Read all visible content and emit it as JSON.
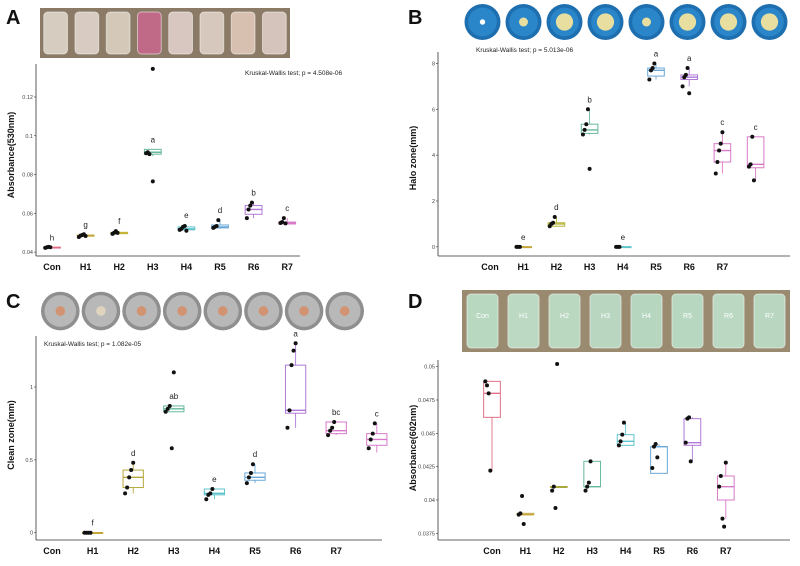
{
  "panels": [
    {
      "letter": "A",
      "annotation": "Kruskal-Wallis test; p = 4.508e-06",
      "ylabel": "Absorbance(530nm)",
      "strip": {
        "kind": "tubes",
        "fills": [
          "#d6ccc0",
          "#d8cbc2",
          "#d4c8b8",
          "#c06a88",
          "#d8c6c0",
          "#d6c8bc",
          "#d8c0b0",
          "#d4c4bc"
        ],
        "labels": []
      }
    },
    {
      "letter": "B",
      "annotation": "Kruskal-Wallis test; p = 5.013e-06",
      "ylabel": "Halo zone(mm)",
      "strip": {
        "kind": "blue-plates"
      }
    },
    {
      "letter": "C",
      "annotation": "Kruskal-Wallis test; p = 1.082e-05",
      "ylabel": "Clean zone(mm)",
      "strip": {
        "kind": "gray-plates"
      }
    },
    {
      "letter": "D",
      "annotation": "",
      "ylabel": "Absorbance(602nm)",
      "strip": {
        "kind": "tubes",
        "fills": [
          "#b9d8c0",
          "#bcd9c3",
          "#bad7bf",
          "#b8d6c0",
          "#b6d6bf",
          "#b8d7c1",
          "#bad8c2",
          "#b9d7c0"
        ],
        "labels": [
          "Con",
          "H1",
          "H2",
          "H3",
          "H4",
          "R5",
          "R6",
          "R7"
        ]
      }
    }
  ],
  "chart_data": [
    {
      "type": "box",
      "categories": [
        "Con",
        "H1",
        "H2",
        "H3",
        "H4",
        "R5",
        "R6",
        "R7"
      ],
      "ylabel": "Absorbance(530nm)",
      "ylim": [
        0.038,
        0.137
      ],
      "yticks": [
        0.04,
        0.06,
        0.08,
        0.1,
        0.12
      ],
      "colors": [
        "#e0708a",
        "#c4a63a",
        "#c4b43a",
        "#66b89a",
        "#5ec4cc",
        "#6aa8d8",
        "#b07ad8",
        "#d87ac8"
      ],
      "letters": [
        "h",
        "g",
        "f",
        "a",
        "e",
        "d",
        "b",
        "c"
      ],
      "boxes": [
        {
          "q1": 0.0425,
          "med": 0.0425,
          "q3": 0.0425,
          "lo": 0.0425,
          "hi": 0.0425,
          "pts": [
            0.0422,
            0.0425,
            0.0427,
            0.0425
          ]
        },
        {
          "q1": 0.0482,
          "med": 0.0485,
          "q3": 0.0488,
          "lo": 0.0478,
          "hi": 0.0492,
          "pts": [
            0.0478,
            0.0485,
            0.0488,
            0.0492,
            0.0483
          ]
        },
        {
          "q1": 0.0495,
          "med": 0.0498,
          "q3": 0.0502,
          "lo": 0.0492,
          "hi": 0.0508,
          "pts": [
            0.0494,
            0.05,
            0.0508,
            0.0499
          ]
        },
        {
          "q1": 0.0905,
          "med": 0.0915,
          "q3": 0.093,
          "lo": 0.0895,
          "hi": 0.093,
          "pts": [
            0.091,
            0.0915,
            0.0905
          ]
        },
        {
          "q1": 0.0515,
          "med": 0.052,
          "q3": 0.053,
          "lo": 0.051,
          "hi": 0.054,
          "pts": [
            0.0515,
            0.052,
            0.053,
            0.0535,
            0.051
          ]
        },
        {
          "q1": 0.0525,
          "med": 0.053,
          "q3": 0.054,
          "lo": 0.052,
          "hi": 0.0565,
          "pts": [
            0.0525,
            0.053,
            0.0535,
            0.0565
          ]
        },
        {
          "q1": 0.0595,
          "med": 0.062,
          "q3": 0.064,
          "lo": 0.0575,
          "hi": 0.0655,
          "pts": [
            0.0575,
            0.062,
            0.064,
            0.0655
          ]
        },
        {
          "q1": 0.0545,
          "med": 0.055,
          "q3": 0.0555,
          "lo": 0.0545,
          "hi": 0.0575,
          "pts": [
            0.055,
            0.0555,
            0.0575,
            0.0548
          ]
        }
      ],
      "outliers": [
        {
          "cat": "H3",
          "y": 0.1345
        },
        {
          "cat": "H3",
          "y": 0.0765
        }
      ]
    },
    {
      "type": "box",
      "categories": [
        "Con",
        "H1",
        "H2",
        "H3",
        "H4",
        "R5",
        "R6",
        "R7"
      ],
      "ylabel": "Halo zone(mm)",
      "ylim": [
        -0.4,
        8.5
      ],
      "yticks": [
        0,
        2,
        4,
        6,
        8
      ],
      "colors": [
        "#e0708a",
        "#c4a63a",
        "#b4b43a",
        "#66b89a",
        "#5ec4cc",
        "#6aa8d8",
        "#b07ad8",
        "#d87ac8"
      ],
      "letters": [
        "e",
        "d",
        "b",
        "e",
        "a",
        "a",
        "c",
        "c"
      ],
      "boxes": [
        null,
        {
          "q1": 0.0,
          "med": 0.0,
          "q3": 0.0,
          "lo": 0.0,
          "hi": 0.0,
          "pts": [
            0.0,
            0.0,
            0.0
          ]
        },
        {
          "q1": 0.9,
          "med": 1.0,
          "q3": 1.05,
          "lo": 0.9,
          "hi": 1.3,
          "pts": [
            0.9,
            1.0,
            1.05,
            1.3
          ]
        },
        {
          "q1": 4.95,
          "med": 5.1,
          "q3": 5.35,
          "lo": 4.9,
          "hi": 6.0,
          "pts": [
            4.9,
            5.1,
            5.35,
            6.0,
            3.4
          ]
        },
        {
          "q1": 0.0,
          "med": 0.0,
          "q3": 0.0,
          "lo": 0.0,
          "hi": 0.0,
          "pts": [
            0.0,
            0.0,
            0.0
          ]
        },
        {
          "q1": 7.45,
          "med": 7.7,
          "q3": 7.8,
          "lo": 7.3,
          "hi": 8.0,
          "pts": [
            7.3,
            7.7,
            7.8,
            8.0
          ]
        },
        {
          "q1": 7.3,
          "med": 7.4,
          "q3": 7.5,
          "lo": 7.0,
          "hi": 7.8,
          "pts": [
            7.0,
            7.4,
            7.5,
            7.8,
            6.7
          ]
        },
        {
          "q1": 3.7,
          "med": 4.2,
          "q3": 4.5,
          "lo": 3.2,
          "hi": 5.0,
          "pts": [
            3.2,
            3.7,
            4.2,
            4.5,
            5.0
          ]
        }
      ],
      "extra_box": {
        "q1": 3.45,
        "med": 3.6,
        "q3": 4.8,
        "lo": 2.9,
        "hi": 4.8,
        "pts": [
          3.5,
          3.6,
          4.8,
          2.9
        ]
      },
      "outliers": []
    },
    {
      "type": "box",
      "categories": [
        "Con",
        "H1",
        "H2",
        "H3",
        "H4",
        "R5",
        "R6",
        "R7"
      ],
      "ylabel": "Clean zone(mm)",
      "ylim": [
        -0.05,
        1.35
      ],
      "yticks": [
        0.0,
        0.5,
        1.0
      ],
      "colors": [
        "#e0708a",
        "#c4a63a",
        "#b4a83a",
        "#66b89a",
        "#5ec4cc",
        "#6aa8d8",
        "#b07ad8",
        "#d87ac8"
      ],
      "letters": [
        "f",
        "d",
        "ab",
        "e",
        "d",
        "a",
        "bc",
        "c"
      ],
      "boxes": [
        null,
        {
          "q1": 0.0,
          "med": 0.0,
          "q3": 0.0,
          "lo": 0.0,
          "hi": 0.0,
          "pts": [
            0.0,
            0.0,
            0.0,
            0.0
          ]
        },
        {
          "q1": 0.31,
          "med": 0.38,
          "q3": 0.43,
          "lo": 0.27,
          "hi": 0.48,
          "pts": [
            0.27,
            0.31,
            0.38,
            0.43,
            0.48
          ]
        },
        {
          "q1": 0.83,
          "med": 0.85,
          "q3": 0.87,
          "lo": 0.83,
          "hi": 0.87,
          "pts": [
            0.83,
            0.85,
            0.87,
            0.58
          ]
        },
        {
          "q1": 0.26,
          "med": 0.27,
          "q3": 0.3,
          "lo": 0.23,
          "hi": 0.3,
          "pts": [
            0.23,
            0.26,
            0.27,
            0.3
          ]
        },
        {
          "q1": 0.36,
          "med": 0.38,
          "q3": 0.41,
          "lo": 0.34,
          "hi": 0.47,
          "pts": [
            0.34,
            0.38,
            0.41,
            0.47
          ]
        },
        {
          "q1": 0.82,
          "med": 0.84,
          "q3": 1.15,
          "lo": 0.72,
          "hi": 1.3,
          "pts": [
            0.72,
            0.84,
            1.15,
            1.25,
            1.3
          ]
        },
        {
          "q1": 0.68,
          "med": 0.7,
          "q3": 0.76,
          "lo": 0.67,
          "hi": 0.76,
          "pts": [
            0.67,
            0.7,
            0.72,
            0.76
          ]
        }
      ],
      "extra_box": {
        "q1": 0.6,
        "med": 0.64,
        "q3": 0.68,
        "lo": 0.55,
        "hi": 0.75,
        "pts": [
          0.58,
          0.64,
          0.68,
          0.75
        ]
      },
      "outliers": [
        {
          "cat": "H3",
          "y": 1.1
        }
      ]
    },
    {
      "type": "box",
      "categories": [
        "Con",
        "H1",
        "H2",
        "H3",
        "H4",
        "R5",
        "R6",
        "R7"
      ],
      "ylabel": "Absorbance(602nm)",
      "ylim": [
        0.037,
        0.0505
      ],
      "yticks": [
        0.0375,
        0.04,
        0.0425,
        0.045,
        0.0475,
        0.05
      ],
      "colors": [
        "#e0708a",
        "#c4a63a",
        "#a8a83a",
        "#66b89a",
        "#5ec4cc",
        "#6aa8d8",
        "#b07ad8",
        "#d87ac8"
      ],
      "letters": [],
      "boxes": [
        {
          "q1": 0.0462,
          "med": 0.048,
          "q3": 0.0489,
          "lo": 0.0422,
          "hi": 0.0489,
          "pts": [
            0.0489,
            0.0486,
            0.048,
            0.0422
          ]
        },
        {
          "q1": 0.0389,
          "med": 0.0389,
          "q3": 0.039,
          "lo": 0.0389,
          "hi": 0.039,
          "pts": [
            0.0389,
            0.039,
            0.0403,
            0.0382
          ]
        },
        {
          "q1": 0.041,
          "med": 0.041,
          "q3": 0.041,
          "lo": 0.041,
          "hi": 0.041,
          "pts": [
            0.0407,
            0.041,
            0.0394,
            0.0502
          ]
        },
        {
          "q1": 0.041,
          "med": 0.041,
          "q3": 0.0429,
          "lo": 0.041,
          "hi": 0.0429,
          "pts": [
            0.0407,
            0.041,
            0.0413,
            0.0429
          ]
        },
        {
          "q1": 0.0441,
          "med": 0.0444,
          "q3": 0.0449,
          "lo": 0.0441,
          "hi": 0.0458,
          "pts": [
            0.0441,
            0.0444,
            0.0449,
            0.0458
          ]
        },
        {
          "q1": 0.042,
          "med": 0.044,
          "q3": 0.044,
          "lo": 0.042,
          "hi": 0.0442,
          "pts": [
            0.0424,
            0.044,
            0.0442,
            0.0432
          ]
        },
        {
          "q1": 0.0441,
          "med": 0.0443,
          "q3": 0.0461,
          "lo": 0.0429,
          "hi": 0.0462,
          "pts": [
            0.0443,
            0.0461,
            0.0462,
            0.0429
          ]
        },
        {
          "q1": 0.04,
          "med": 0.041,
          "q3": 0.0418,
          "lo": 0.0386,
          "hi": 0.0428,
          "pts": [
            0.041,
            0.0418,
            0.0386,
            0.038,
            0.0428
          ]
        }
      ],
      "outliers": []
    }
  ]
}
